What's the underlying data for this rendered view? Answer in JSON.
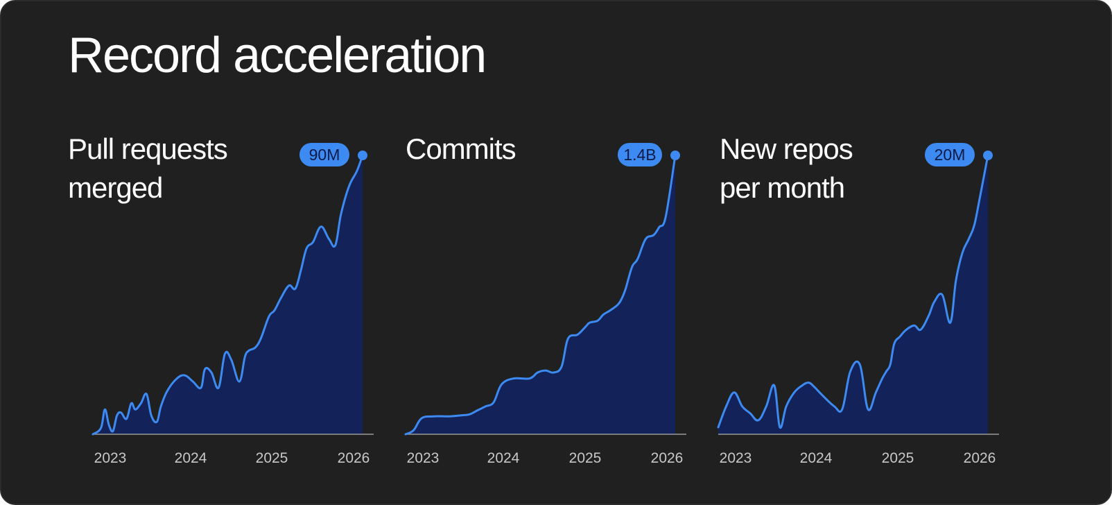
{
  "page": {
    "title": "Record acceleration"
  },
  "colors": {
    "background": "#202020",
    "line": "#3d8bf2",
    "area": "#14225a",
    "badge": "#3d8bf2",
    "baseline": "#9a9a9a"
  },
  "chart_data": [
    {
      "type": "area",
      "title_lines": [
        "Pull requests",
        "merged"
      ],
      "badge_label": "90M",
      "x_ticks": [
        "2023",
        "2024",
        "2025",
        "2026"
      ],
      "x_tick_positions": [
        2023,
        2024,
        2025,
        2026
      ],
      "xlim": [
        2022.85,
        2026.35
      ],
      "ylim": [
        0,
        90
      ],
      "series": [
        {
          "x": [
            2022.85,
            2022.95,
            2023.0,
            2023.05,
            2023.1,
            2023.15,
            2023.2,
            2023.27,
            2023.33,
            2023.38,
            2023.45,
            2023.52,
            2023.58,
            2023.65,
            2023.7,
            2023.78,
            2023.9,
            2024.0,
            2024.1,
            2024.2,
            2024.25,
            2024.33,
            2024.42,
            2024.5,
            2024.58,
            2024.68,
            2024.75,
            2024.8,
            2024.88,
            2024.95,
            2025.05,
            2025.12,
            2025.2,
            2025.3,
            2025.38,
            2025.45,
            2025.52,
            2025.6,
            2025.7,
            2025.8,
            2025.88,
            2025.95,
            2026.05,
            2026.15,
            2026.22
          ],
          "y": [
            0,
            2,
            8,
            3,
            1,
            6,
            7,
            5,
            10,
            8,
            10,
            13,
            6,
            4,
            9,
            14,
            18,
            19,
            17,
            15,
            21,
            20,
            15,
            26,
            24,
            17,
            25,
            27,
            28,
            31,
            38,
            40,
            44,
            48,
            47,
            53,
            60,
            62,
            67,
            63,
            61,
            71,
            80,
            85,
            90
          ]
        }
      ]
    },
    {
      "type": "area",
      "title_lines": [
        "Commits"
      ],
      "badge_label": "1.4B",
      "x_ticks": [
        "2023",
        "2024",
        "2025",
        "2026"
      ],
      "x_tick_positions": [
        2023,
        2024,
        2025,
        2026
      ],
      "xlim": [
        2022.85,
        2026.35
      ],
      "ylim": [
        0,
        1.4
      ],
      "series": [
        {
          "x": [
            2022.85,
            2022.95,
            2023.05,
            2023.2,
            2023.4,
            2023.55,
            2023.65,
            2023.75,
            2023.85,
            2023.95,
            2024.05,
            2024.2,
            2024.4,
            2024.5,
            2024.6,
            2024.7,
            2024.8,
            2024.88,
            2025.0,
            2025.1,
            2025.15,
            2025.25,
            2025.32,
            2025.4,
            2025.5,
            2025.55,
            2025.6,
            2025.68,
            2025.75,
            2025.85,
            2025.95,
            2026.02,
            2026.1,
            2026.22
          ],
          "y": [
            0,
            0.02,
            0.08,
            0.09,
            0.09,
            0.095,
            0.1,
            0.12,
            0.14,
            0.16,
            0.25,
            0.28,
            0.28,
            0.31,
            0.32,
            0.31,
            0.34,
            0.48,
            0.5,
            0.54,
            0.56,
            0.57,
            0.6,
            0.62,
            0.65,
            0.68,
            0.73,
            0.84,
            0.88,
            0.98,
            1.0,
            1.04,
            1.09,
            1.4
          ]
        }
      ]
    },
    {
      "type": "area",
      "title_lines": [
        "New repos",
        "per month"
      ],
      "badge_label": "20M",
      "x_ticks": [
        "2023",
        "2024",
        "2025",
        "2026"
      ],
      "x_tick_positions": [
        2023,
        2024,
        2025,
        2026
      ],
      "xlim": [
        2022.85,
        2026.35
      ],
      "ylim": [
        0,
        20
      ],
      "series": [
        {
          "x": [
            2022.85,
            2022.95,
            2023.05,
            2023.15,
            2023.25,
            2023.35,
            2023.45,
            2023.55,
            2023.62,
            2023.7,
            2023.8,
            2023.9,
            2023.98,
            2024.05,
            2024.15,
            2024.3,
            2024.4,
            2024.5,
            2024.62,
            2024.72,
            2024.82,
            2024.9,
            2024.95,
            2025.0,
            2025.05,
            2025.12,
            2025.2,
            2025.3,
            2025.38,
            2025.48,
            2025.55,
            2025.65,
            2025.75,
            2025.82,
            2025.9,
            2025.98,
            2026.05,
            2026.12,
            2026.22
          ],
          "y": [
            0.5,
            2,
            3,
            2,
            1.5,
            1,
            2,
            3.5,
            0.5,
            2,
            3,
            3.5,
            3.7,
            3.4,
            2.8,
            2,
            1.8,
            4.5,
            5,
            1.8,
            3,
            4,
            4.5,
            5,
            6.5,
            7,
            7.5,
            7.8,
            7.5,
            8.5,
            9.5,
            10,
            8,
            11,
            13,
            14,
            15,
            17,
            20
          ]
        }
      ]
    }
  ]
}
